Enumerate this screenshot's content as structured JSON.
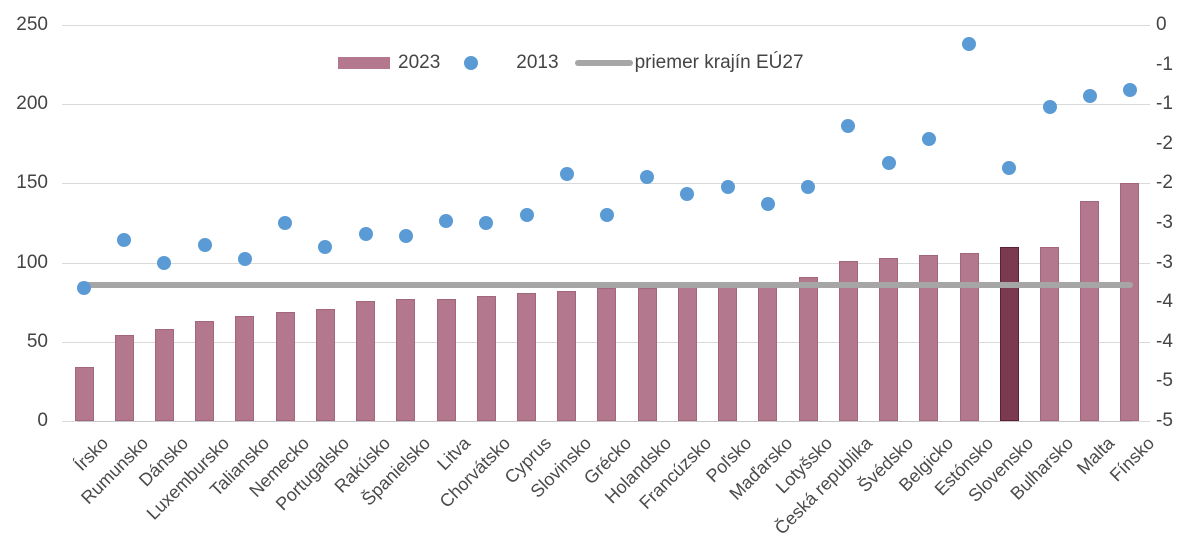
{
  "chart_data": {
    "type": "bar",
    "title": "",
    "categories": [
      "Írsko",
      "Rumunsko",
      "Dánsko",
      "Luxembursko",
      "Taliansko",
      "Nemecko",
      "Portugalsko",
      "Rakúsko",
      "Španielsko",
      "Litva",
      "Chorvátsko",
      "Cyprus",
      "Slovinsko",
      "Grécko",
      "Holandsko",
      "Francúzsko",
      "Poľsko",
      "Maďarsko",
      "Lotyšsko",
      "Česká republika",
      "Švédsko",
      "Belgicko",
      "Estónsko",
      "Slovensko",
      "Bulharsko",
      "Malta",
      "Fínsko"
    ],
    "series": [
      {
        "name": "2023",
        "type": "bar",
        "color": "#b3788d",
        "border_color": "#a2677c",
        "values": [
          34,
          54,
          58,
          63,
          66,
          69,
          71,
          76,
          77,
          77,
          79,
          81,
          82,
          84,
          84,
          85,
          85,
          85,
          91,
          101,
          103,
          105,
          106,
          110,
          110,
          139,
          150
        ]
      },
      {
        "name": "2013",
        "type": "scatter",
        "color": "#5b9bd5",
        "values": [
          84,
          114,
          100,
          111,
          102,
          125,
          110,
          118,
          117,
          126,
          125,
          130,
          156,
          130,
          154,
          143,
          148,
          137,
          148,
          186,
          163,
          178,
          238,
          160,
          198,
          205,
          209
        ]
      },
      {
        "name": "priemer krajín EÚ27",
        "type": "line",
        "color": "#a6a6a6",
        "value": 86
      }
    ],
    "highlight": {
      "category": "Slovensko",
      "color": "#7b3a50",
      "border_color": "#5d2136"
    },
    "left_axis": {
      "min": 0,
      "max": 250,
      "ticks": [
        "250",
        "200",
        "150",
        "100",
        "50",
        "0"
      ],
      "tick_values": [
        250,
        200,
        150,
        100,
        50,
        0
      ]
    },
    "right_axis": {
      "ticks": [
        "0",
        "-1",
        "-1",
        "-2",
        "-2",
        "-3",
        "-3",
        "-4",
        "-4",
        "-5",
        "-5"
      ]
    },
    "grid": true,
    "legend_position": "top-center",
    "colors": {
      "gridline": "#d9d9d9",
      "axis_text": "#444444"
    }
  },
  "legend": {
    "item_bar_label": "2023",
    "item_dot_label": "2013",
    "item_line_label": "priemer krajín EÚ27"
  }
}
